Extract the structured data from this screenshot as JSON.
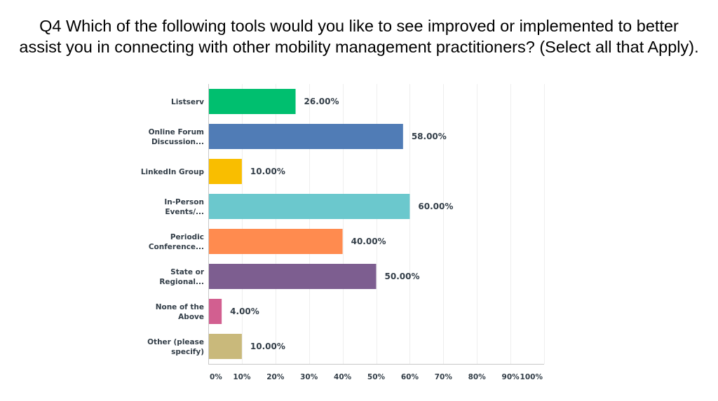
{
  "title": {
    "line1": "Q4 Which of the following tools would you like to see improved or implemented to better",
    "line2": "assist you in connecting with other mobility management practitioners? (Select all that Apply)."
  },
  "chart_data": {
    "type": "bar",
    "orientation": "horizontal",
    "title": "Q4 Which of the following tools would you like to see improved or implemented to better assist you in connecting with other mobility management practitioners? (Select all that Apply).",
    "categories": [
      [
        "Listserv"
      ],
      [
        "Online Forum",
        "Discussion..."
      ],
      [
        "LinkedIn Group"
      ],
      [
        "In-Person",
        "Events/..."
      ],
      [
        "Periodic",
        "Conference..."
      ],
      [
        "State or",
        "Regional..."
      ],
      [
        "None of the",
        "Above"
      ],
      [
        "Other (please",
        "specify)"
      ]
    ],
    "values": [
      26,
      58,
      10,
      60,
      40,
      50,
      4,
      10
    ],
    "value_labels": [
      "26.00%",
      "58.00%",
      "10.00%",
      "60.00%",
      "40.00%",
      "50.00%",
      "4.00%",
      "10.00%"
    ],
    "colors": [
      "#00bf6f",
      "#507cb6",
      "#f9be00",
      "#6bc8cd",
      "#ff8b4f",
      "#7d5e90",
      "#d25f90",
      "#c9b97b"
    ],
    "xlim": [
      0,
      100
    ],
    "xticks": [
      "0%",
      "10%",
      "20%",
      "30%",
      "40%",
      "50%",
      "60%",
      "70%",
      "80%",
      "90%",
      "100%"
    ],
    "grid": true,
    "gridColor": "#eeeeee",
    "axisColor": "#c8c8c8"
  }
}
